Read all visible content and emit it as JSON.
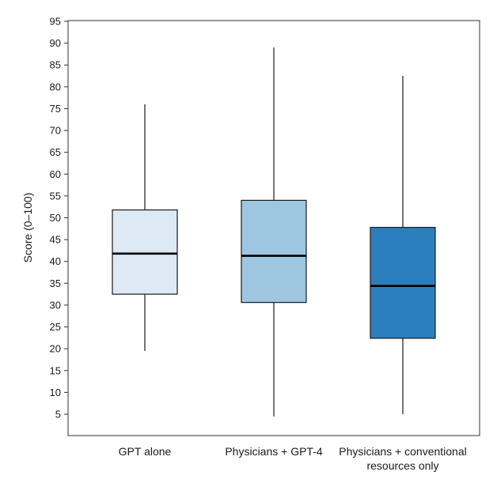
{
  "chart_data": {
    "type": "boxplot",
    "title": "",
    "xlabel": "",
    "ylabel": "Score (0–100)",
    "ylim": [
      0,
      95
    ],
    "yticks": [
      5,
      10,
      15,
      20,
      25,
      30,
      35,
      40,
      45,
      50,
      55,
      60,
      65,
      70,
      75,
      80,
      85,
      90,
      95
    ],
    "grid": false,
    "categories": [
      {
        "label_lines": [
          "GPT alone"
        ],
        "min": 19.5,
        "q1": 32.5,
        "median": 41.8,
        "q3": 51.8,
        "max": 76.0,
        "color": "#dde9f4"
      },
      {
        "label_lines": [
          "Physicians + GPT-4"
        ],
        "min": 4.5,
        "q1": 30.6,
        "median": 41.3,
        "q3": 54.0,
        "max": 89.0,
        "color": "#9ec6e0"
      },
      {
        "label_lines": [
          "Physicians + conventional",
          "resources only"
        ],
        "min": 5.0,
        "q1": 22.4,
        "median": 34.4,
        "q3": 47.8,
        "max": 82.5,
        "color": "#2b7fbd"
      }
    ]
  }
}
